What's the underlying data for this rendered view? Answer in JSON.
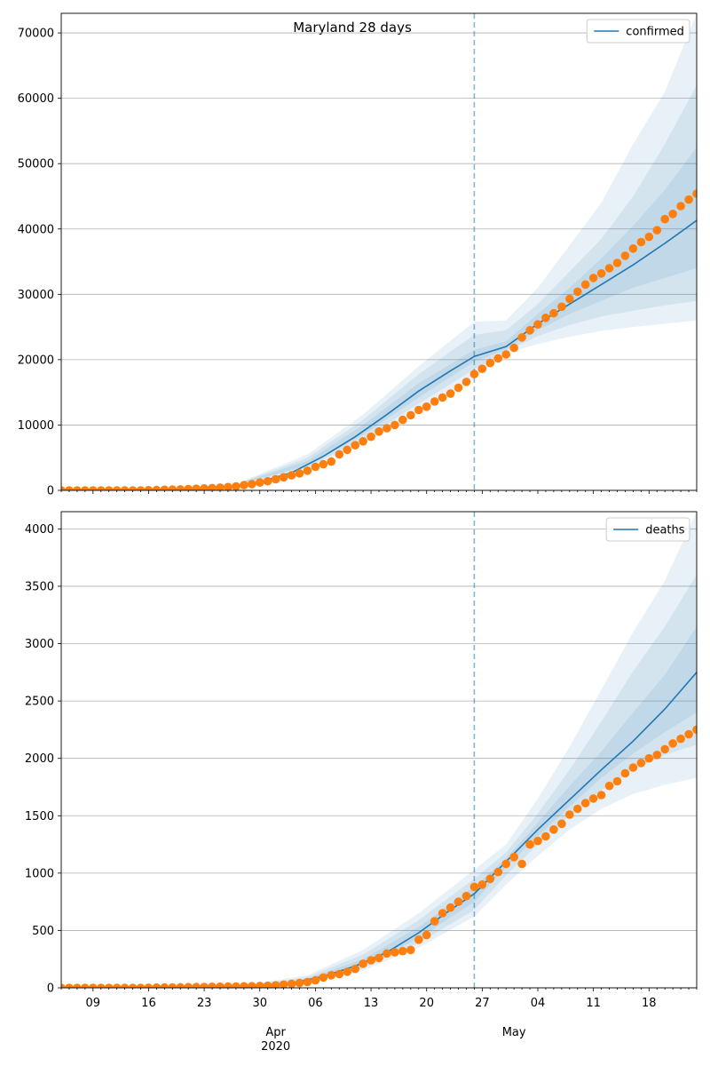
{
  "figure": {
    "title": "Maryland 28 days",
    "x_tick_labels": [
      "09",
      "16",
      "23",
      "30",
      "06",
      "13",
      "20",
      "27",
      "04",
      "11",
      "18"
    ],
    "x_month_labels": [
      {
        "date": "2020-04-01",
        "text": "Apr"
      },
      {
        "date": "2020-05-01",
        "text": "May"
      }
    ],
    "x_year_label": "2020"
  },
  "chart_data": [
    {
      "type": "line",
      "name": "confirmed-panel",
      "legend": [
        "confirmed"
      ],
      "legend_position": "top-right",
      "grid": "horizontal",
      "x_range": [
        "2020-03-05",
        "2020-05-24"
      ],
      "ylim": [
        0,
        73000
      ],
      "y_ticks": [
        0,
        10000,
        20000,
        30000,
        40000,
        50000,
        60000,
        70000
      ],
      "forecast_start": "2020-04-26",
      "colors": {
        "model": "#1f77b4",
        "observed": "#ff7f0e",
        "band": "#1f77b4"
      },
      "model_median": {
        "x": [
          "2020-03-05",
          "2020-03-10",
          "2020-03-15",
          "2020-03-20",
          "2020-03-25",
          "2020-03-30",
          "2020-04-03",
          "2020-04-07",
          "2020-04-11",
          "2020-04-15",
          "2020-04-19",
          "2020-04-23",
          "2020-04-26",
          "2020-04-30",
          "2020-05-04",
          "2020-05-08",
          "2020-05-12",
          "2020-05-16",
          "2020-05-20",
          "2020-05-24"
        ],
        "y": [
          0,
          0,
          50,
          150,
          400,
          1300,
          2700,
          5200,
          8200,
          11600,
          15200,
          18300,
          20500,
          22000,
          25500,
          28500,
          31500,
          34500,
          37800,
          41300
        ]
      },
      "bands": [
        {
          "x": [
            "2020-03-28",
            "2020-04-05",
            "2020-04-12",
            "2020-04-19",
            "2020-04-26",
            "2020-04-30",
            "2020-05-04",
            "2020-05-08",
            "2020-05-12",
            "2020-05-16",
            "2020-05-20",
            "2020-05-24"
          ],
          "lower": [
            950,
            3200,
            7400,
            12500,
            17000,
            21000,
            22400,
            23500,
            24400,
            25000,
            25500,
            26000
          ],
          "upper": [
            1500,
            5500,
            11600,
            19000,
            25800,
            26000,
            31000,
            37500,
            44000,
            53000,
            61000,
            73000
          ]
        },
        {
          "x": [
            "2020-03-28",
            "2020-04-05",
            "2020-04-12",
            "2020-04-19",
            "2020-04-26",
            "2020-04-30",
            "2020-05-04",
            "2020-05-08",
            "2020-05-12",
            "2020-05-16",
            "2020-05-20",
            "2020-05-24"
          ],
          "lower": [
            1050,
            3500,
            7800,
            13300,
            18500,
            21300,
            23600,
            25300,
            26600,
            27500,
            28300,
            29000
          ],
          "upper": [
            1400,
            5000,
            10800,
            17800,
            23800,
            24500,
            28500,
            33500,
            38500,
            45000,
            53000,
            62000
          ]
        },
        {
          "x": [
            "2020-03-28",
            "2020-04-05",
            "2020-04-12",
            "2020-04-19",
            "2020-04-26",
            "2020-04-30",
            "2020-05-04",
            "2020-05-08",
            "2020-05-12",
            "2020-05-16",
            "2020-05-20",
            "2020-05-24"
          ],
          "lower": [
            1150,
            3800,
            8500,
            14200,
            19700,
            21600,
            24500,
            27000,
            29000,
            31000,
            32500,
            34000
          ],
          "upper": [
            1300,
            4500,
            10000,
            16400,
            21500,
            22800,
            27000,
            31000,
            35500,
            40500,
            46000,
            52500
          ]
        }
      ],
      "observed": {
        "x_start": "2020-03-05",
        "y": [
          0,
          0,
          0,
          0,
          0,
          0,
          0,
          0,
          0,
          0,
          0,
          30,
          60,
          90,
          120,
          150,
          200,
          250,
          300,
          350,
          420,
          500,
          600,
          800,
          950,
          1200,
          1400,
          1700,
          2000,
          2300,
          2600,
          3000,
          3600,
          4000,
          4400,
          5500,
          6200,
          6900,
          7500,
          8200,
          9000,
          9500,
          10000,
          10800,
          11500,
          12300,
          12800,
          13600,
          14200,
          14800,
          15700,
          16600,
          17800,
          18600,
          19500,
          20200,
          20800,
          21800,
          23400,
          24500,
          25400,
          26400,
          27100,
          28100,
          29300,
          30400,
          31500,
          32500,
          33200,
          34000,
          34800,
          35900,
          37000,
          38000,
          38800,
          39800,
          41500,
          42300,
          43500,
          44500,
          45400,
          46300
        ]
      }
    },
    {
      "type": "line",
      "name": "deaths-panel",
      "legend": [
        "deaths"
      ],
      "legend_position": "top-right",
      "grid": "horizontal",
      "x_range": [
        "2020-03-05",
        "2020-05-24"
      ],
      "ylim": [
        0,
        4150
      ],
      "y_ticks": [
        0,
        500,
        1000,
        1500,
        2000,
        2500,
        3000,
        3500,
        4000
      ],
      "forecast_start": "2020-04-26",
      "colors": {
        "model": "#1f77b4",
        "observed": "#ff7f0e",
        "band": "#1f77b4"
      },
      "model_median": {
        "x": [
          "2020-03-05",
          "2020-03-25",
          "2020-03-30",
          "2020-04-03",
          "2020-04-07",
          "2020-04-11",
          "2020-04-15",
          "2020-04-19",
          "2020-04-23",
          "2020-04-26",
          "2020-04-30",
          "2020-05-04",
          "2020-05-08",
          "2020-05-12",
          "2020-05-16",
          "2020-05-20",
          "2020-05-24"
        ],
        "y": [
          0,
          5,
          15,
          40,
          100,
          190,
          310,
          480,
          680,
          820,
          1100,
          1380,
          1640,
          1900,
          2150,
          2430,
          2750
        ]
      },
      "bands": [
        {
          "x": [
            "2020-03-28",
            "2020-04-05",
            "2020-04-12",
            "2020-04-19",
            "2020-04-26",
            "2020-04-30",
            "2020-05-04",
            "2020-05-08",
            "2020-05-12",
            "2020-05-16",
            "2020-05-20",
            "2020-05-24"
          ],
          "lower": [
            5,
            40,
            150,
            350,
            620,
            900,
            1150,
            1380,
            1560,
            1690,
            1770,
            1830
          ],
          "upper": [
            20,
            110,
            330,
            650,
            1030,
            1250,
            1650,
            2100,
            2600,
            3100,
            3550,
            4150
          ]
        },
        {
          "x": [
            "2020-03-28",
            "2020-04-05",
            "2020-04-12",
            "2020-04-19",
            "2020-04-26",
            "2020-04-30",
            "2020-05-04",
            "2020-05-08",
            "2020-05-12",
            "2020-05-16",
            "2020-05-20",
            "2020-05-24"
          ],
          "lower": [
            7,
            50,
            170,
            390,
            680,
            980,
            1250,
            1500,
            1720,
            1900,
            2030,
            2120
          ],
          "upper": [
            16,
            95,
            290,
            590,
            950,
            1180,
            1520,
            1900,
            2320,
            2760,
            3150,
            3600
          ]
        },
        {
          "x": [
            "2020-03-28",
            "2020-04-05",
            "2020-04-12",
            "2020-04-19",
            "2020-04-26",
            "2020-04-30",
            "2020-05-04",
            "2020-05-08",
            "2020-05-12",
            "2020-05-16",
            "2020-05-20",
            "2020-05-24"
          ],
          "lower": [
            9,
            60,
            200,
            430,
            750,
            1050,
            1320,
            1580,
            1830,
            2040,
            2230,
            2400
          ],
          "upper": [
            13,
            80,
            250,
            530,
            880,
            1130,
            1440,
            1760,
            2060,
            2400,
            2730,
            3150
          ]
        }
      ],
      "observed": {
        "x_start": "2020-03-05",
        "y": [
          0,
          0,
          0,
          0,
          0,
          0,
          0,
          0,
          0,
          0,
          0,
          1,
          2,
          3,
          4,
          5,
          6,
          7,
          8,
          9,
          10,
          11,
          12,
          13,
          14,
          16,
          18,
          22,
          28,
          35,
          42,
          50,
          65,
          90,
          110,
          120,
          140,
          165,
          210,
          240,
          260,
          300,
          310,
          320,
          330,
          420,
          460,
          580,
          650,
          700,
          750,
          800,
          880,
          900,
          950,
          1010,
          1080,
          1140,
          1080,
          1250,
          1280,
          1320,
          1380,
          1430,
          1510,
          1560,
          1610,
          1650,
          1680,
          1760,
          1800,
          1870,
          1920,
          1960,
          2000,
          2030,
          2080,
          2130,
          2170,
          2210,
          2250,
          2280
        ]
      }
    }
  ]
}
